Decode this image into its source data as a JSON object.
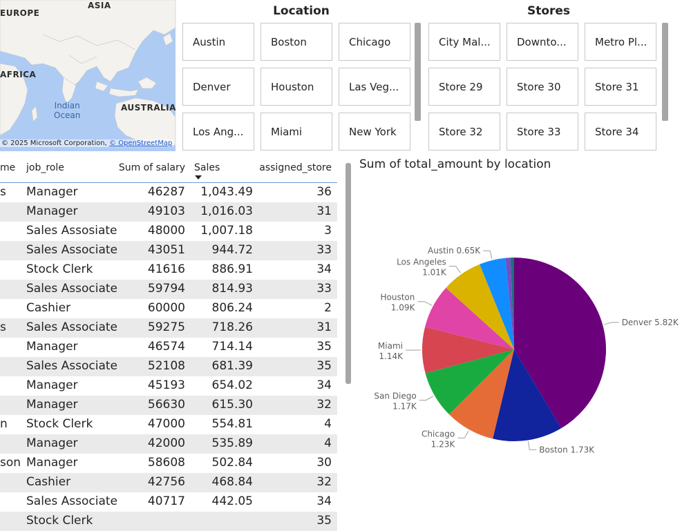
{
  "map": {
    "labels": {
      "europe": "EUROPE",
      "asia": "ASIA",
      "africa": "AFRICA",
      "australia": "AUSTRALIA"
    },
    "ocean": [
      "Indian",
      "Ocean"
    ],
    "copyright": "© 2025 Microsoft Corporation,",
    "osm": "© OpenStreetMap"
  },
  "location_slicer": {
    "title": "Location",
    "items": [
      "Austin",
      "Boston",
      "Chicago",
      "Denver",
      "Houston",
      "Las Veg...",
      "Los Ang...",
      "Miami",
      "New York"
    ]
  },
  "stores_slicer": {
    "title": "Stores",
    "items": [
      "City Mal...",
      "Downto...",
      "Metro Pl...",
      "Store 29",
      "Store 30",
      "Store 31",
      "Store 32",
      "Store 33",
      "Store 34"
    ]
  },
  "table": {
    "columns": [
      "me",
      "job_role",
      "Sum of salary",
      "Sales",
      "assigned_store"
    ],
    "rows": [
      [
        "s",
        "Manager",
        "46287",
        "1,043.49",
        "36"
      ],
      [
        "",
        "Manager",
        "49103",
        "1,016.03",
        "31"
      ],
      [
        "",
        "Sales Assosiate",
        "48000",
        "1,007.18",
        "3"
      ],
      [
        "",
        "Sales Associate",
        "43051",
        "944.72",
        "33"
      ],
      [
        "",
        "Stock Clerk",
        "41616",
        "886.91",
        "34"
      ],
      [
        "",
        "Sales Associate",
        "59794",
        "814.93",
        "33"
      ],
      [
        "",
        "Cashier",
        "60000",
        "806.24",
        "2"
      ],
      [
        "s",
        "Sales Associate",
        "59275",
        "718.26",
        "31"
      ],
      [
        "",
        "Manager",
        "46574",
        "714.14",
        "35"
      ],
      [
        "",
        "Sales Associate",
        "52108",
        "681.39",
        "35"
      ],
      [
        "",
        "Manager",
        "45193",
        "654.02",
        "34"
      ],
      [
        "",
        "Manager",
        "56630",
        "615.30",
        "32"
      ],
      [
        "n",
        "Stock Clerk",
        "47000",
        "554.81",
        "4"
      ],
      [
        "",
        "Manager",
        "42000",
        "535.89",
        "4"
      ],
      [
        "son",
        "Manager",
        "58608",
        "502.84",
        "30"
      ],
      [
        "",
        "Cashier",
        "42756",
        "468.84",
        "32"
      ],
      [
        "",
        "Sales Associate",
        "40717",
        "442.05",
        "34"
      ],
      [
        "",
        "Stock Clerk",
        "",
        "",
        "35"
      ]
    ]
  },
  "chart_data": {
    "type": "pie",
    "title": "Sum of total_amount by location",
    "slices": [
      {
        "label": "Denver",
        "value_label": "5.82K",
        "value": 5820,
        "color": "#6b007b"
      },
      {
        "label": "Boston",
        "value_label": "1.73K",
        "value": 1730,
        "color": "#12239e"
      },
      {
        "label": "Chicago",
        "value_label": "1.23K",
        "value": 1230,
        "color": "#e66c37"
      },
      {
        "label": "San Diego",
        "value_label": "1.17K",
        "value": 1170,
        "color": "#1aab40"
      },
      {
        "label": "Miami",
        "value_label": "1.14K",
        "value": 1140,
        "color": "#d64550"
      },
      {
        "label": "Houston",
        "value_label": "1.09K",
        "value": 1090,
        "color": "#e044a7"
      },
      {
        "label": "Los Angeles",
        "value_label": "1.01K",
        "value": 1010,
        "color": "#d9b300"
      },
      {
        "label": "Austin",
        "value_label": "0.65K",
        "value": 650,
        "color": "#118dff"
      },
      {
        "label": "",
        "value_label": "",
        "value": 120,
        "color": "#744ec2"
      },
      {
        "label": "",
        "value_label": "",
        "value": 90,
        "color": "#197278"
      }
    ]
  }
}
